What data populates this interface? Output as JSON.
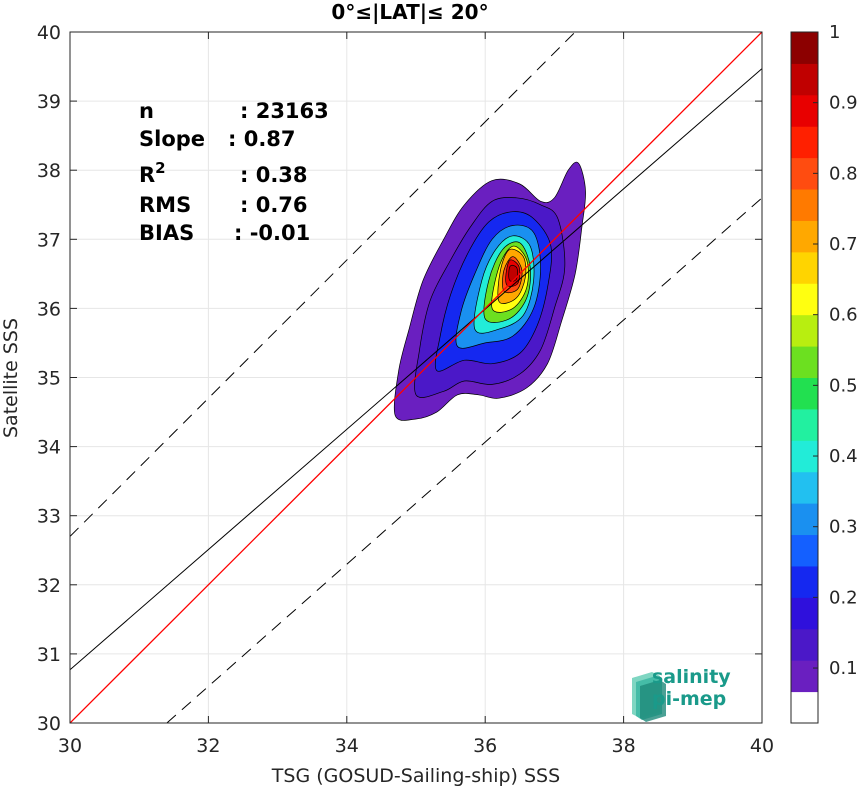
{
  "chart_data": {
    "type": "heatmap",
    "title": "0°≤|LAT|≤ 20°",
    "xlabel": "TSG (GOSUD-Sailing-ship) SSS",
    "ylabel": "Satellite SSS",
    "xlim": [
      30,
      40
    ],
    "ylim": [
      30,
      40
    ],
    "xticks": [
      30,
      32,
      34,
      36,
      38,
      40
    ],
    "yticks": [
      30,
      31,
      32,
      33,
      34,
      35,
      36,
      37,
      38,
      39,
      40
    ],
    "grid": true,
    "stats": [
      {
        "label": "n",
        "value": ": 23163"
      },
      {
        "label": "Slope",
        "value": ": 0.87"
      },
      {
        "label": "R",
        "sup": "2",
        "value": ": 0.38"
      },
      {
        "label": "RMS",
        "value": ": 0.76"
      },
      {
        "label": "BIAS",
        "value": ": -0.01"
      }
    ],
    "lines": {
      "identity": {
        "x": [
          30,
          40
        ],
        "y": [
          30,
          40
        ],
        "color": "#ff0000"
      },
      "fit": {
        "x": [
          30,
          40
        ],
        "y": [
          30.77,
          39.47
        ],
        "color": "#000000"
      },
      "upper_bound": {
        "x": [
          30,
          40
        ],
        "y": [
          32.7,
          42.7
        ],
        "color": "#000000",
        "style": "dashed"
      },
      "lower_bound": {
        "x": [
          31.4,
          40
        ],
        "y": [
          30,
          37.6
        ],
        "color": "#000000",
        "style": "dashed"
      }
    },
    "density_center": {
      "x": 36.4,
      "y": 36.5
    },
    "density_levels": [
      0.05,
      0.1,
      0.2,
      0.3,
      0.4,
      0.5,
      0.6,
      0.7,
      0.8,
      0.9,
      0.95
    ],
    "density_contours": [
      {
        "level": 0.05,
        "pts": [
          [
            34.7,
            34.45
          ],
          [
            35.0,
            34.4
          ],
          [
            35.3,
            34.5
          ],
          [
            35.6,
            34.75
          ],
          [
            35.9,
            34.75
          ],
          [
            36.2,
            34.7
          ],
          [
            36.6,
            34.85
          ],
          [
            36.9,
            35.2
          ],
          [
            37.1,
            35.8
          ],
          [
            37.3,
            36.5
          ],
          [
            37.4,
            37.2
          ],
          [
            37.45,
            37.7
          ],
          [
            37.35,
            38.1
          ],
          [
            37.2,
            38.0
          ],
          [
            37.0,
            37.6
          ],
          [
            36.8,
            37.55
          ],
          [
            36.5,
            37.8
          ],
          [
            36.1,
            37.85
          ],
          [
            35.7,
            37.5
          ],
          [
            35.4,
            37.0
          ],
          [
            35.1,
            36.4
          ],
          [
            34.9,
            35.7
          ],
          [
            34.75,
            35.1
          ]
        ]
      },
      {
        "level": 0.1,
        "pts": [
          [
            35.0,
            34.75
          ],
          [
            35.4,
            34.8
          ],
          [
            35.7,
            34.95
          ],
          [
            36.1,
            34.9
          ],
          [
            36.5,
            35.05
          ],
          [
            36.8,
            35.4
          ],
          [
            37.0,
            36.0
          ],
          [
            37.15,
            36.6
          ],
          [
            37.05,
            37.3
          ],
          [
            36.8,
            37.5
          ],
          [
            36.45,
            37.6
          ],
          [
            36.1,
            37.55
          ],
          [
            35.8,
            37.2
          ],
          [
            35.5,
            36.7
          ],
          [
            35.2,
            36.1
          ],
          [
            35.05,
            35.4
          ]
        ]
      },
      {
        "level": 0.2,
        "pts": [
          [
            35.3,
            35.1
          ],
          [
            35.7,
            35.25
          ],
          [
            36.1,
            35.2
          ],
          [
            36.5,
            35.35
          ],
          [
            36.75,
            35.75
          ],
          [
            36.9,
            36.3
          ],
          [
            36.95,
            36.9
          ],
          [
            36.7,
            37.3
          ],
          [
            36.4,
            37.4
          ],
          [
            36.05,
            37.25
          ],
          [
            35.75,
            36.8
          ],
          [
            35.5,
            36.2
          ],
          [
            35.35,
            35.6
          ]
        ]
      },
      {
        "level": 0.3,
        "pts": [
          [
            35.6,
            35.45
          ],
          [
            36.0,
            35.5
          ],
          [
            36.4,
            35.6
          ],
          [
            36.7,
            36.0
          ],
          [
            36.8,
            36.6
          ],
          [
            36.7,
            37.1
          ],
          [
            36.4,
            37.2
          ],
          [
            36.1,
            37.0
          ],
          [
            35.85,
            36.5
          ],
          [
            35.65,
            35.95
          ]
        ]
      },
      {
        "level": 0.4,
        "pts": [
          [
            35.85,
            35.7
          ],
          [
            36.2,
            35.7
          ],
          [
            36.55,
            35.9
          ],
          [
            36.7,
            36.4
          ],
          [
            36.65,
            36.9
          ],
          [
            36.4,
            37.05
          ],
          [
            36.15,
            36.85
          ],
          [
            35.95,
            36.4
          ]
        ]
      },
      {
        "level": 0.5,
        "pts": [
          [
            36.0,
            35.85
          ],
          [
            36.35,
            35.85
          ],
          [
            36.6,
            36.15
          ],
          [
            36.65,
            36.6
          ],
          [
            36.5,
            36.95
          ],
          [
            36.25,
            36.85
          ],
          [
            36.05,
            36.4
          ]
        ]
      },
      {
        "level": 0.6,
        "pts": [
          [
            36.1,
            36.0
          ],
          [
            36.4,
            36.0
          ],
          [
            36.6,
            36.3
          ],
          [
            36.6,
            36.7
          ],
          [
            36.4,
            36.9
          ],
          [
            36.2,
            36.6
          ]
        ]
      },
      {
        "level": 0.7,
        "pts": [
          [
            36.2,
            36.1
          ],
          [
            36.45,
            36.15
          ],
          [
            36.58,
            36.45
          ],
          [
            36.55,
            36.75
          ],
          [
            36.35,
            36.85
          ],
          [
            36.22,
            36.55
          ]
        ]
      },
      {
        "level": 0.8,
        "pts": [
          [
            36.27,
            36.25
          ],
          [
            36.47,
            36.28
          ],
          [
            36.53,
            36.55
          ],
          [
            36.4,
            36.75
          ],
          [
            36.27,
            36.55
          ]
        ]
      },
      {
        "level": 0.9,
        "pts": [
          [
            36.32,
            36.33
          ],
          [
            36.47,
            36.36
          ],
          [
            36.49,
            36.6
          ],
          [
            36.36,
            36.7
          ],
          [
            36.3,
            36.5
          ]
        ]
      },
      {
        "level": 0.95,
        "pts": [
          [
            36.36,
            36.4
          ],
          [
            36.45,
            36.42
          ],
          [
            36.46,
            36.58
          ],
          [
            36.37,
            36.62
          ],
          [
            36.34,
            36.5
          ]
        ]
      }
    ],
    "colorbar": {
      "ticks": [
        0.1,
        0.2,
        0.3,
        0.4,
        0.5,
        0.6,
        0.7,
        0.8,
        0.9,
        1
      ],
      "tick_labels": [
        "0.1",
        "0.2",
        "0.3",
        "0.4",
        "0.5",
        "0.6",
        "0.7",
        "0.8",
        "0.9",
        "1"
      ],
      "lim": [
        0,
        1
      ],
      "colors": [
        "#ffffff",
        "#6a1fc0",
        "#4b18c8",
        "#2f10dc",
        "#1528f0",
        "#1460ff",
        "#1a90f0",
        "#22c0f0",
        "#22ecd8",
        "#22f0a0",
        "#22e050",
        "#6ce020",
        "#b8ee10",
        "#ffff10",
        "#ffd400",
        "#ffa800",
        "#ff7a00",
        "#ff4c10",
        "#ff2000",
        "#e80000",
        "#c00000",
        "#8c0000"
      ]
    }
  },
  "logo": {
    "line1": "salinity",
    "line2": "pi-mep",
    "colors": [
      "#3fb9a4",
      "#1e8a7a",
      "#7fd6c2"
    ]
  }
}
